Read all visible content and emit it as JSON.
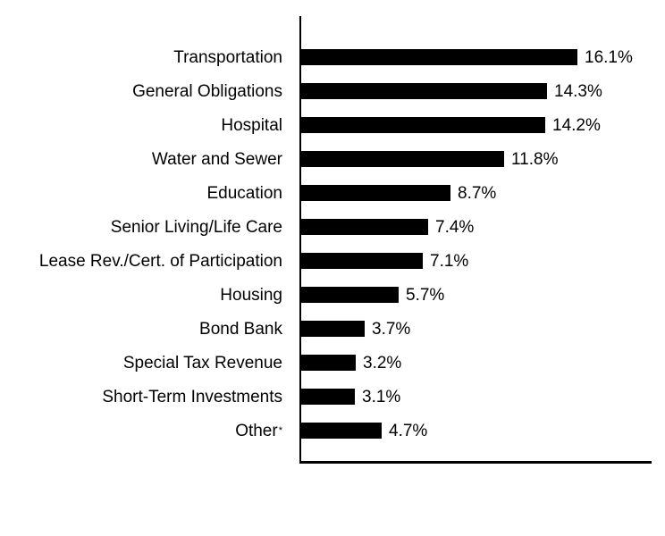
{
  "chart_data": {
    "type": "bar",
    "orientation": "horizontal",
    "title": "",
    "xlabel": "",
    "ylabel": "",
    "grid": false,
    "legend": "none",
    "background_color": "#ffffff",
    "bar_color": "#000000",
    "axis_color": "#000000",
    "text_color": "#000000",
    "xlim": [
      0,
      20.4
    ],
    "categories": [
      {
        "label": "Transportation",
        "sup": ""
      },
      {
        "label": "General Obligations",
        "sup": ""
      },
      {
        "label": "Hospital",
        "sup": ""
      },
      {
        "label": "Water and Sewer",
        "sup": ""
      },
      {
        "label": "Education",
        "sup": ""
      },
      {
        "label": "Senior Living/Life Care",
        "sup": ""
      },
      {
        "label": "Lease Rev./Cert. of Participation",
        "sup": ""
      },
      {
        "label": "Housing",
        "sup": ""
      },
      {
        "label": "Bond Bank",
        "sup": ""
      },
      {
        "label": "Special Tax Revenue",
        "sup": ""
      },
      {
        "label": "Short-Term Investments",
        "sup": ""
      },
      {
        "label": "Other",
        "sup": "*"
      }
    ],
    "values": [
      16.1,
      14.3,
      14.2,
      11.8,
      8.7,
      7.4,
      7.1,
      5.7,
      3.7,
      3.2,
      3.1,
      4.7
    ],
    "value_labels": [
      "16.1%",
      "14.3%",
      "14.2%",
      "11.8%",
      "8.7%",
      "7.4%",
      "7.1%",
      "5.7%",
      "3.7%",
      "3.2%",
      "3.1%",
      "4.7%"
    ]
  }
}
